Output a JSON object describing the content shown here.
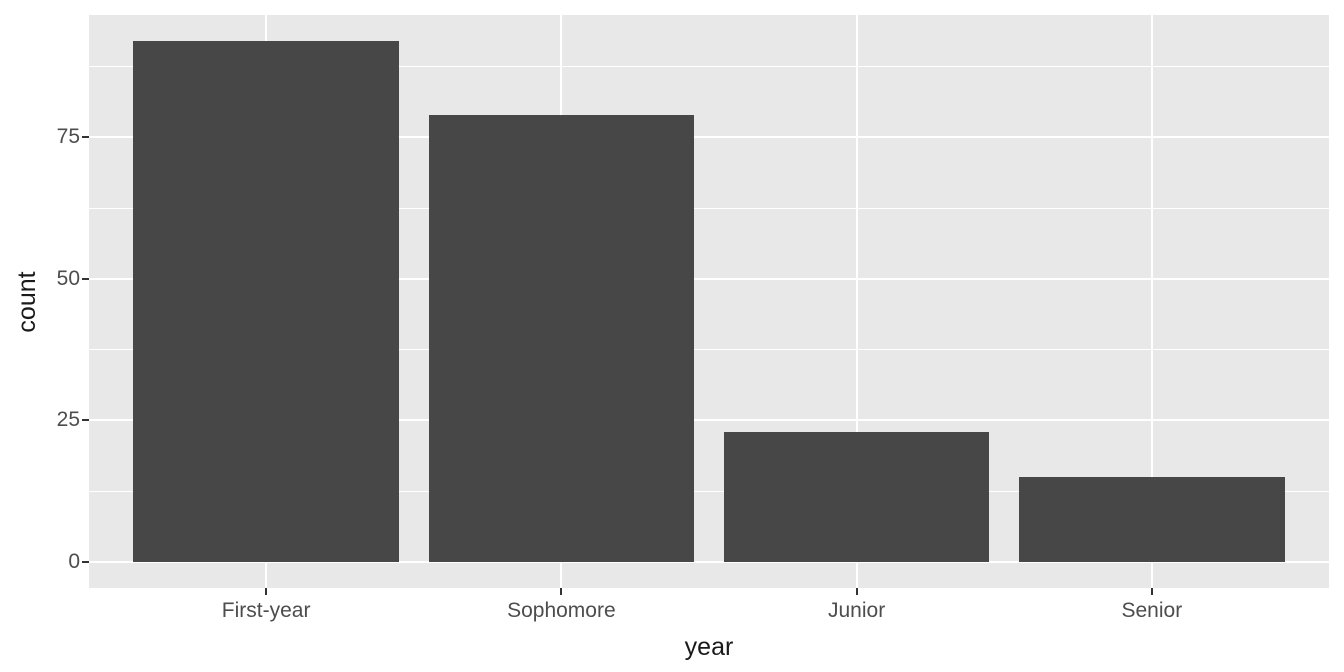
{
  "chart_data": {
    "type": "bar",
    "title": "",
    "xlabel": "year",
    "ylabel": "count",
    "categories": [
      "First-year",
      "Sophomore",
      "Junior",
      "Senior"
    ],
    "values": [
      92,
      79,
      23,
      15
    ],
    "y_ticks": [
      0,
      25,
      50,
      75
    ],
    "y_tick_labels": [
      "0",
      "25",
      "50",
      "75"
    ],
    "y_minor_ticks": [
      12.5,
      37.5,
      62.5,
      87.5
    ],
    "ylim": [
      -4.6,
      96.6
    ],
    "xlim": [
      0.4,
      4.6
    ],
    "bar_width": 0.9,
    "grid": "major-horizontal, minor-horizontal, major-vertical-at-categories",
    "legend": "none",
    "theme": {
      "panel_bg": "#E8E8E8",
      "plot_bg": "#FFFFFF",
      "bar_fill": "#474747",
      "grid_color": "#FFFFFF",
      "tick_label_color": "#4D4D4D",
      "axis_title_color": "#1A1A1A",
      "tick_mark_color": "#333333"
    }
  }
}
